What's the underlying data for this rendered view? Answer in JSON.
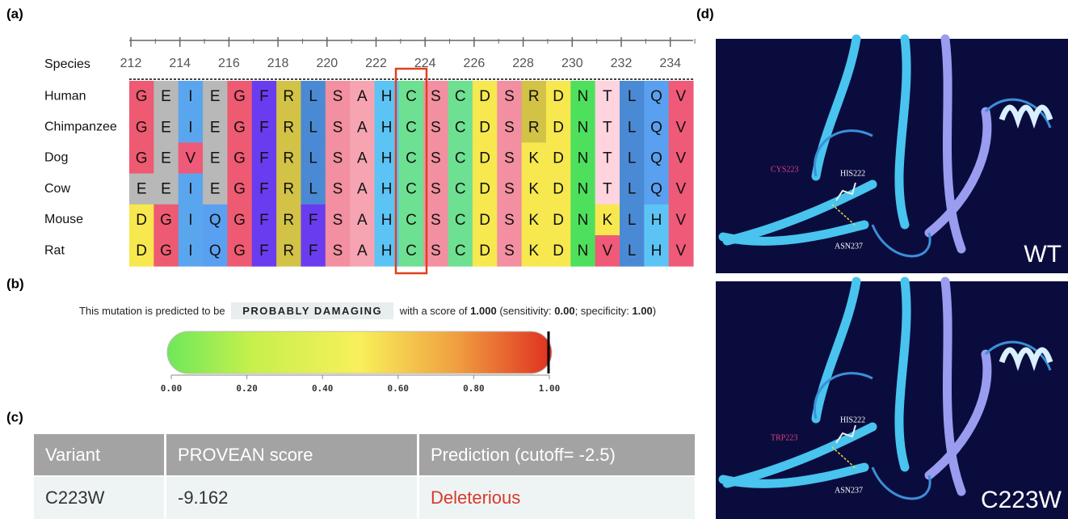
{
  "panels": {
    "a": "(a)",
    "b": "(b)",
    "c": "(c)",
    "d": "(d)"
  },
  "alignment": {
    "header": "Species",
    "positions": [
      "212",
      "214",
      "216",
      "218",
      "220",
      "222",
      "224",
      "226",
      "228",
      "230",
      "232",
      "234"
    ],
    "rows": [
      {
        "species": "Human",
        "residues": [
          "G",
          "E",
          "I",
          "E",
          "G",
          "F",
          "R",
          "L",
          "S",
          "A",
          "H",
          "C",
          "S",
          "C",
          "D",
          "S",
          "R",
          "D",
          "N",
          "T",
          "L",
          "Q",
          "V"
        ]
      },
      {
        "species": "Chimpanzee",
        "residues": [
          "G",
          "E",
          "I",
          "E",
          "G",
          "F",
          "R",
          "L",
          "S",
          "A",
          "H",
          "C",
          "S",
          "C",
          "D",
          "S",
          "R",
          "D",
          "N",
          "T",
          "L",
          "Q",
          "V"
        ]
      },
      {
        "species": "Dog",
        "residues": [
          "G",
          "E",
          "V",
          "E",
          "G",
          "F",
          "R",
          "L",
          "S",
          "A",
          "H",
          "C",
          "S",
          "C",
          "D",
          "S",
          "K",
          "D",
          "N",
          "T",
          "L",
          "Q",
          "V"
        ]
      },
      {
        "species": "Cow",
        "residues": [
          "E",
          "E",
          "I",
          "E",
          "G",
          "F",
          "R",
          "L",
          "S",
          "A",
          "H",
          "C",
          "S",
          "C",
          "D",
          "S",
          "K",
          "D",
          "N",
          "T",
          "L",
          "Q",
          "V"
        ]
      },
      {
        "species": "Mouse",
        "residues": [
          "D",
          "G",
          "I",
          "Q",
          "G",
          "F",
          "R",
          "F",
          "S",
          "A",
          "H",
          "C",
          "S",
          "C",
          "D",
          "S",
          "K",
          "D",
          "N",
          "K",
          "L",
          "H",
          "V"
        ]
      },
      {
        "species": "Rat",
        "residues": [
          "D",
          "G",
          "I",
          "Q",
          "G",
          "F",
          "R",
          "F",
          "S",
          "A",
          "H",
          "C",
          "S",
          "C",
          "D",
          "S",
          "K",
          "D",
          "N",
          "V",
          "L",
          "H",
          "V"
        ]
      }
    ]
  },
  "polyphen": {
    "prefix": "This mutation is predicted to be",
    "prediction": "PROBABLY DAMAGING",
    "score_text": "with a score of",
    "score": "1.000",
    "sensitivity_text": "(sensitivity:",
    "sensitivity": "0.00",
    "specificity_text": "; specificity:",
    "specificity": "1.00",
    "suffix": ")",
    "scale": [
      "0.00",
      "0.20",
      "0.40",
      "0.60",
      "0.80",
      "1.00"
    ]
  },
  "provean": {
    "columns": [
      "Variant",
      "PROVEAN score",
      "Prediction (cutoff= -2.5)"
    ],
    "rows": [
      [
        "C223W",
        "-9.162",
        "Deleterious"
      ]
    ]
  },
  "structures": [
    {
      "mutant_residue": "CYS223",
      "his": "HIS222",
      "asn": "ASN237",
      "tag": "WT"
    },
    {
      "mutant_residue": "TRP223",
      "his": "HIS222",
      "asn": "ASN237",
      "tag": "C223W"
    }
  ]
}
